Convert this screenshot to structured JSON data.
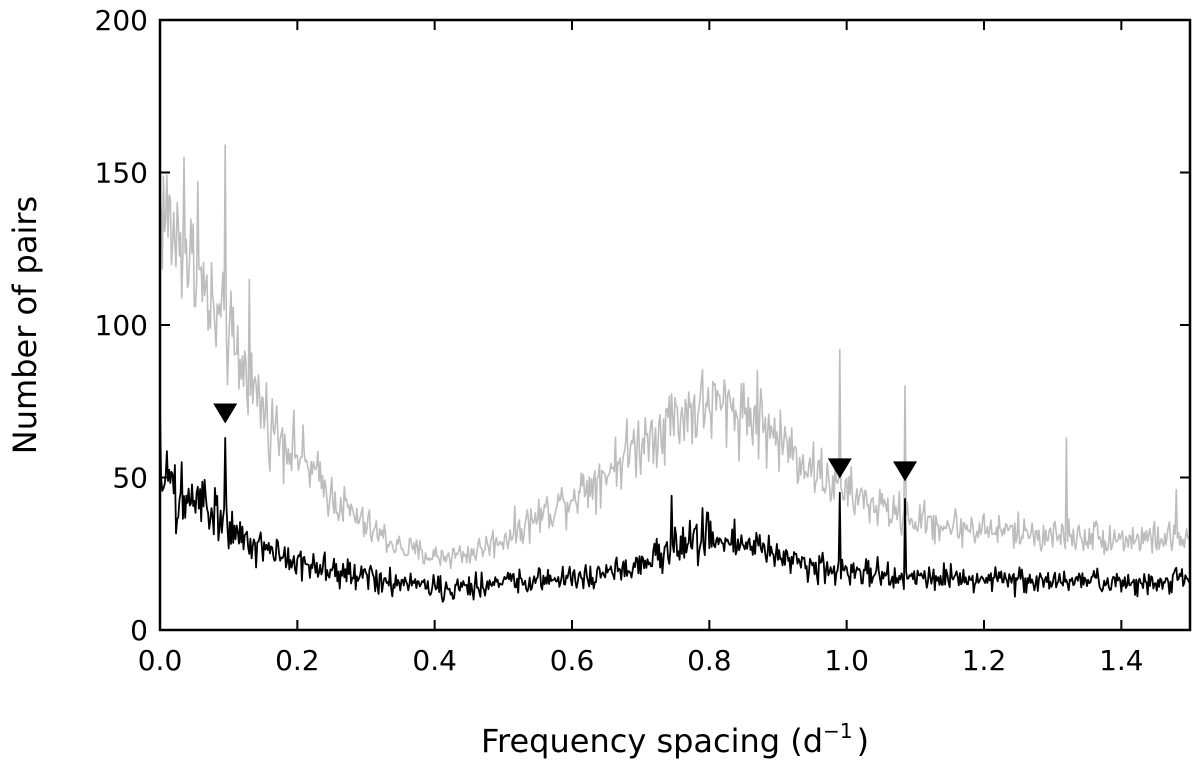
{
  "chart_data": {
    "type": "line",
    "title": "",
    "xlabel": "Frequency spacing (d",
    "xlabel_sup": "−1",
    "xlabel_close": ")",
    "ylabel": "Number of pairs",
    "xlim": [
      0.0,
      1.5
    ],
    "ylim": [
      0,
      200
    ],
    "xticks": [
      0.0,
      0.2,
      0.4,
      0.6,
      0.8,
      1.0,
      1.2,
      1.4
    ],
    "xtick_labels": [
      "0.0",
      "0.2",
      "0.4",
      "0.6",
      "0.8",
      "1.0",
      "1.2",
      "1.4"
    ],
    "yticks": [
      0,
      50,
      100,
      150,
      200
    ],
    "ytick_labels": [
      "0",
      "50",
      "100",
      "150",
      "200"
    ],
    "grid": false,
    "series": [
      {
        "color": "#bdbdbd",
        "envelope": {
          "x": [
            0.0,
            0.02,
            0.05,
            0.08,
            0.1,
            0.13,
            0.16,
            0.2,
            0.25,
            0.3,
            0.35,
            0.4,
            0.45,
            0.5,
            0.55,
            0.6,
            0.65,
            0.7,
            0.75,
            0.8,
            0.85,
            0.9,
            0.95,
            1.0,
            1.05,
            1.1,
            1.15,
            1.2,
            1.25,
            1.3,
            1.35,
            1.4,
            1.45,
            1.5
          ],
          "y": [
            140,
            130,
            118,
            102,
            95,
            82,
            68,
            58,
            44,
            34,
            27,
            24,
            25,
            30,
            37,
            44,
            52,
            62,
            70,
            74,
            72,
            63,
            53,
            45,
            40,
            36,
            34,
            33,
            32,
            31,
            31,
            30,
            30,
            30
          ]
        },
        "peaks": [
          {
            "x": 0.095,
            "y": 159
          },
          {
            "x": 0.035,
            "y": 155
          },
          {
            "x": 0.055,
            "y": 147
          },
          {
            "x": 0.13,
            "y": 115
          },
          {
            "x": 0.99,
            "y": 92
          },
          {
            "x": 1.085,
            "y": 80
          },
          {
            "x": 0.87,
            "y": 85
          },
          {
            "x": 1.32,
            "y": 63
          },
          {
            "x": 1.48,
            "y": 46
          }
        ]
      },
      {
        "color": "#000000",
        "envelope": {
          "x": [
            0.0,
            0.02,
            0.05,
            0.08,
            0.1,
            0.15,
            0.2,
            0.25,
            0.3,
            0.35,
            0.4,
            0.45,
            0.5,
            0.55,
            0.6,
            0.65,
            0.7,
            0.75,
            0.8,
            0.85,
            0.9,
            0.95,
            1.0,
            1.05,
            1.1,
            1.15,
            1.2,
            1.25,
            1.3,
            1.35,
            1.4,
            1.45,
            1.5
          ],
          "y": [
            52,
            47,
            42,
            37,
            33,
            27,
            22,
            19,
            17,
            15,
            14,
            14,
            15,
            16,
            17,
            19,
            22,
            27,
            31,
            29,
            24,
            21,
            19,
            18,
            17,
            17,
            17,
            16,
            16,
            16,
            16,
            16,
            16
          ]
        },
        "peaks": [
          {
            "x": 0.0,
            "y": 73
          },
          {
            "x": 0.095,
            "y": 63
          },
          {
            "x": 0.99,
            "y": 45
          },
          {
            "x": 1.085,
            "y": 43
          },
          {
            "x": 0.745,
            "y": 44
          },
          {
            "x": 0.79,
            "y": 40
          }
        ]
      }
    ],
    "markers": [
      {
        "x": 0.095,
        "y": 71,
        "shape": "triangle-down"
      },
      {
        "x": 0.99,
        "y": 53,
        "shape": "triangle-down"
      },
      {
        "x": 1.085,
        "y": 52,
        "shape": "triangle-down"
      }
    ]
  }
}
